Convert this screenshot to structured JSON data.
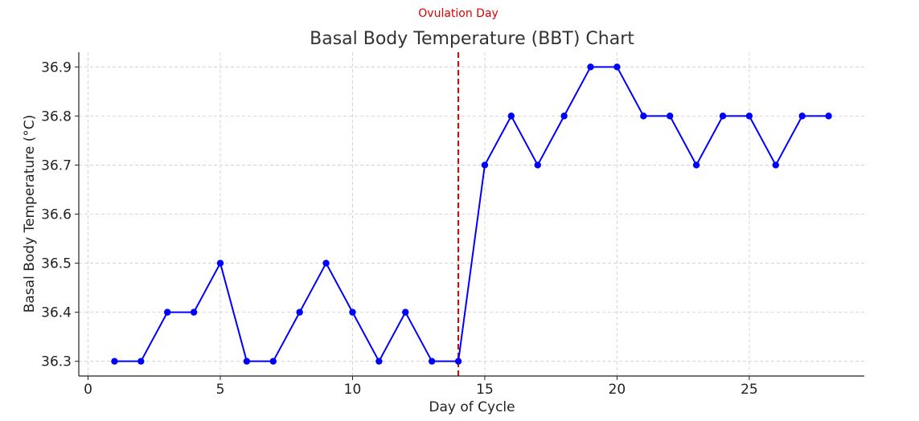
{
  "chart_data": {
    "type": "line",
    "title": "Basal Body Temperature (BBT) Chart",
    "xlabel": "Day of Cycle",
    "ylabel": "Basal Body Temperature (°C)",
    "xlim": [
      -0.35,
      29.35
    ],
    "ylim": [
      36.27,
      36.93
    ],
    "xticks": [
      0,
      5,
      10,
      15,
      20,
      25
    ],
    "yticks": [
      36.3,
      36.4,
      36.5,
      36.6,
      36.7,
      36.8,
      36.9
    ],
    "ytick_labels": [
      "36.3",
      "36.4",
      "36.5",
      "36.6",
      "36.7",
      "36.8",
      "36.9"
    ],
    "grid": true,
    "series": [
      {
        "color": "#0000ff",
        "marker": "circle",
        "x": [
          1,
          2,
          3,
          4,
          5,
          6,
          7,
          8,
          9,
          10,
          11,
          12,
          13,
          14,
          15,
          16,
          17,
          18,
          19,
          20,
          21,
          22,
          23,
          24,
          25,
          26,
          27,
          28
        ],
        "y": [
          36.3,
          36.3,
          36.4,
          36.4,
          36.5,
          36.3,
          36.3,
          36.4,
          36.5,
          36.4,
          36.3,
          36.4,
          36.3,
          36.3,
          36.7,
          36.8,
          36.7,
          36.8,
          36.9,
          36.9,
          36.8,
          36.8,
          36.7,
          36.8,
          36.8,
          36.7,
          36.8,
          36.8
        ]
      }
    ],
    "annotations": [
      {
        "type": "vline",
        "x": 14,
        "color": "#dd0000",
        "style": "dashed",
        "label": "Ovulation Day"
      }
    ]
  }
}
